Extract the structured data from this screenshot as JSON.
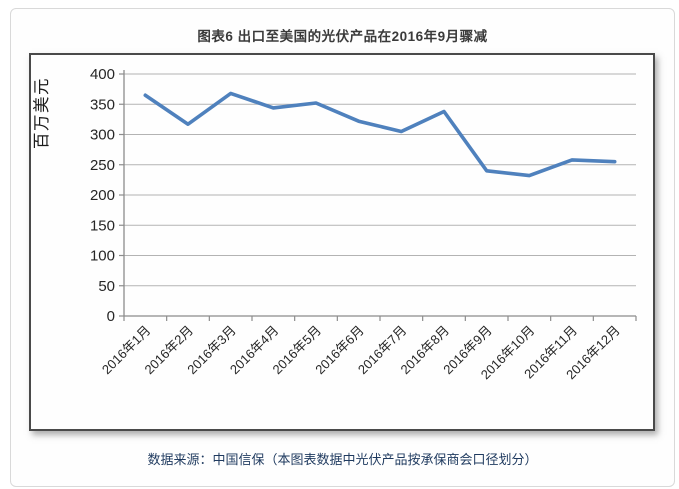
{
  "page": {
    "title": "图表6 出口至美国的光伏产品在2016年9月骤减",
    "source_note": "数据来源：中国信保（本图表数据中光伏产品按承保商会口径划分）"
  },
  "colors": {
    "line": "#4F81BD",
    "title_text": "#3A3A3A",
    "source_text": "#1F3A5F",
    "gridline": "#B3B3B3",
    "axis": "#8C8C8C",
    "tick_label": "#262626",
    "frame_border": "#4A4A4A"
  },
  "chart_data": {
    "type": "line",
    "title": "图表6 出口至美国的光伏产品在2016年9月骤减",
    "ylabel": "百万美元",
    "xlabel": "",
    "categories": [
      "2016年1月",
      "2016年2月",
      "2016年3月",
      "2016年4月",
      "2016年5月",
      "2016年6月",
      "2016年7月",
      "2016年8月",
      "2016年9月",
      "2016年10月",
      "2016年11月",
      "2016年12月"
    ],
    "values": [
      365,
      317,
      368,
      344,
      352,
      322,
      305,
      338,
      240,
      232,
      258,
      255
    ],
    "ylim": [
      0,
      400
    ],
    "yticks": [
      0,
      50,
      100,
      150,
      200,
      250,
      300,
      350,
      400
    ],
    "grid": true,
    "legend": false,
    "x_label_rotation_deg": 45,
    "source": "数据来源：中国信保（本图表数据中光伏产品按承保商会口径划分）"
  }
}
